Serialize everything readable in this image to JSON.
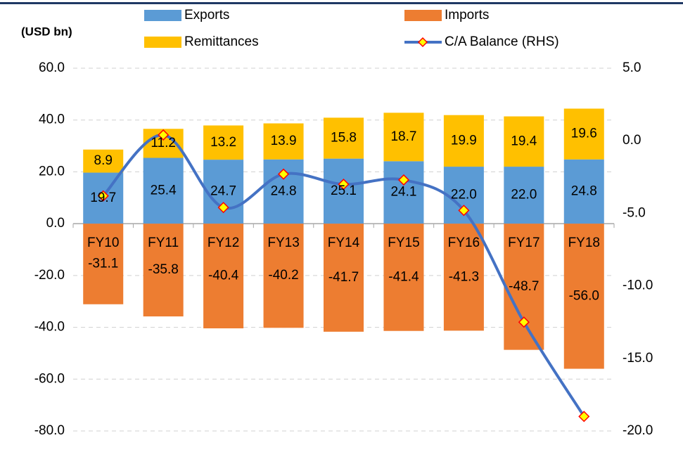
{
  "chart_data": {
    "type": "stacked-bar-line",
    "y_axis_label": "(USD bn)",
    "categories": [
      "FY10",
      "FY11",
      "FY12",
      "FY13",
      "FY14",
      "FY15",
      "FY16",
      "FY17",
      "FY18"
    ],
    "series": [
      {
        "name": "Exports",
        "color": "#5b9bd5",
        "stack": "pos",
        "values": [
          19.7,
          25.4,
          24.7,
          24.8,
          25.1,
          24.1,
          22.0,
          22.0,
          24.8
        ],
        "value_labels": [
          "19.7",
          "25.4",
          "24.7",
          "24.8",
          "25.1",
          "24.1",
          "22.0",
          "22.0",
          "24.8"
        ]
      },
      {
        "name": "Imports",
        "color": "#ed7d31",
        "stack": "neg",
        "values": [
          -31.1,
          -35.8,
          -40.4,
          -40.2,
          -41.7,
          -41.4,
          -41.3,
          -48.7,
          -56.0
        ],
        "value_labels": [
          "-31.1",
          "-35.8",
          "-40.4",
          "-40.2",
          "-41.7",
          "-41.4",
          "-41.3",
          "-48.7",
          "-56.0"
        ]
      },
      {
        "name": "Remittances",
        "color": "#ffc000",
        "stack": "pos",
        "values": [
          8.9,
          11.2,
          13.2,
          13.9,
          15.8,
          18.7,
          19.9,
          19.4,
          19.6
        ],
        "value_labels": [
          "8.9",
          "11.2",
          "13.2",
          "13.9",
          "15.8",
          "18.7",
          "19.9",
          "19.4",
          "19.6"
        ]
      },
      {
        "name": "C/A Balance (RHS)",
        "color": "#4472c4",
        "axis": "y2",
        "values": [
          -3.8,
          0.4,
          -4.6,
          -2.3,
          -3.0,
          -2.7,
          -4.8,
          -12.5,
          -19.0
        ]
      }
    ],
    "ylim": [
      -80,
      60
    ],
    "yticks": [
      {
        "value": -80,
        "label": "-80.0"
      },
      {
        "value": -60,
        "label": "-60.0"
      },
      {
        "value": -40,
        "label": "-40.0"
      },
      {
        "value": -20,
        "label": "-20.0"
      },
      {
        "value": 0,
        "label": "0.0"
      },
      {
        "value": 20,
        "label": "20.0"
      },
      {
        "value": 40,
        "label": "40.0"
      },
      {
        "value": 60,
        "label": "60.0"
      }
    ],
    "y2lim": [
      -20,
      5
    ],
    "y2ticks": [
      {
        "value": -20,
        "label": "-20.0"
      },
      {
        "value": -15,
        "label": "-15.0"
      },
      {
        "value": -10,
        "label": "-10.0"
      },
      {
        "value": -5,
        "label": "-5.0"
      },
      {
        "value": 0,
        "label": "0.0"
      },
      {
        "value": 5,
        "label": "5.0"
      }
    ],
    "grid": true
  }
}
